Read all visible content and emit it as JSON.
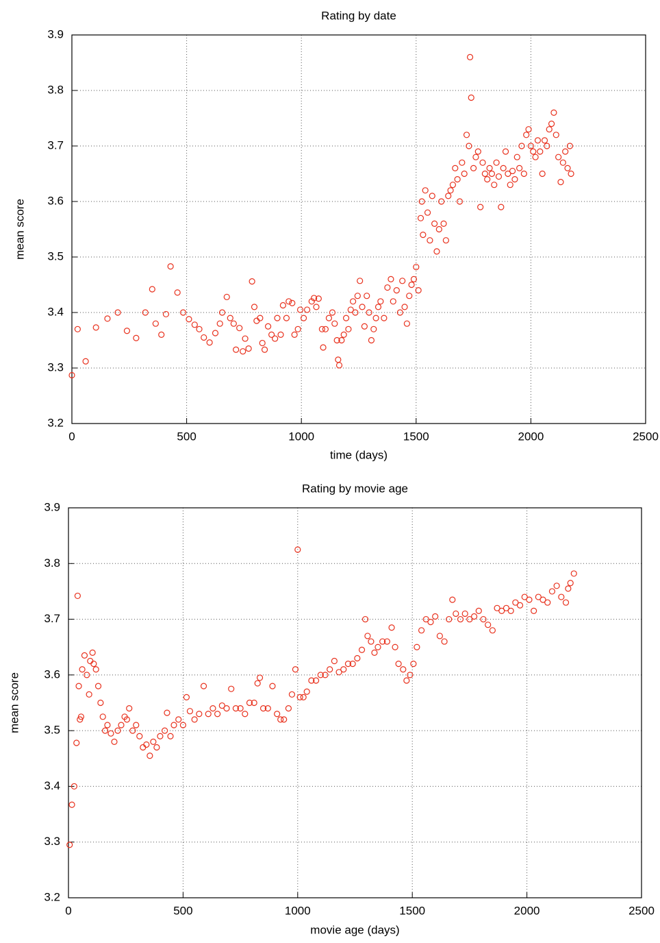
{
  "chart_data": [
    {
      "type": "scatter",
      "title": "Rating by date",
      "xlabel": "time (days)",
      "ylabel": "mean score",
      "color": "#e8301c",
      "grid": true,
      "xlim": [
        0,
        2500
      ],
      "xticks": [
        0,
        500,
        1000,
        1500,
        2000,
        2500
      ],
      "ylim": [
        3.2,
        3.9
      ],
      "yticks": [
        3.2,
        3.3,
        3.4,
        3.5,
        3.6,
        3.7,
        3.8,
        3.9
      ],
      "x": [
        0,
        25,
        60,
        105,
        155,
        200,
        240,
        280,
        320,
        350,
        365,
        390,
        410,
        430,
        460,
        485,
        510,
        535,
        555,
        575,
        600,
        625,
        645,
        655,
        675,
        690,
        705,
        715,
        730,
        745,
        755,
        770,
        785,
        795,
        805,
        820,
        830,
        840,
        855,
        870,
        885,
        895,
        910,
        920,
        935,
        945,
        960,
        970,
        985,
        995,
        1010,
        1025,
        1045,
        1055,
        1065,
        1075,
        1090,
        1095,
        1105,
        1120,
        1135,
        1145,
        1155,
        1160,
        1165,
        1175,
        1185,
        1195,
        1205,
        1215,
        1225,
        1235,
        1245,
        1255,
        1265,
        1275,
        1285,
        1295,
        1305,
        1315,
        1325,
        1335,
        1345,
        1360,
        1375,
        1390,
        1400,
        1415,
        1430,
        1440,
        1450,
        1460,
        1470,
        1480,
        1490,
        1500,
        1510,
        1520,
        1525,
        1530,
        1540,
        1550,
        1560,
        1570,
        1580,
        1590,
        1600,
        1610,
        1620,
        1630,
        1640,
        1650,
        1660,
        1670,
        1680,
        1690,
        1700,
        1710,
        1720,
        1730,
        1735,
        1740,
        1750,
        1760,
        1770,
        1780,
        1790,
        1800,
        1810,
        1820,
        1830,
        1840,
        1850,
        1860,
        1870,
        1880,
        1890,
        1900,
        1910,
        1920,
        1930,
        1940,
        1950,
        1960,
        1970,
        1980,
        1990,
        2000,
        2010,
        2020,
        2030,
        2040,
        2050,
        2060,
        2070,
        2080,
        2090,
        2100,
        2110,
        2120,
        2130,
        2140,
        2150,
        2160,
        2170,
        2175
      ],
      "values": [
        3.287,
        3.37,
        3.312,
        3.373,
        3.389,
        3.4,
        3.367,
        3.354,
        3.4,
        3.442,
        3.38,
        3.36,
        3.397,
        3.483,
        3.436,
        3.4,
        3.388,
        3.378,
        3.37,
        3.355,
        3.346,
        3.363,
        3.38,
        3.4,
        3.428,
        3.39,
        3.38,
        3.333,
        3.372,
        3.33,
        3.353,
        3.335,
        3.456,
        3.41,
        3.385,
        3.39,
        3.345,
        3.333,
        3.375,
        3.36,
        3.353,
        3.39,
        3.36,
        3.413,
        3.39,
        3.42,
        3.417,
        3.36,
        3.37,
        3.405,
        3.39,
        3.405,
        3.42,
        3.426,
        3.41,
        3.425,
        3.37,
        3.337,
        3.37,
        3.39,
        3.4,
        3.38,
        3.35,
        3.315,
        3.305,
        3.35,
        3.36,
        3.39,
        3.37,
        3.405,
        3.42,
        3.4,
        3.43,
        3.457,
        3.41,
        3.375,
        3.43,
        3.4,
        3.35,
        3.37,
        3.39,
        3.41,
        3.42,
        3.39,
        3.445,
        3.46,
        3.42,
        3.44,
        3.4,
        3.457,
        3.41,
        3.38,
        3.43,
        3.45,
        3.46,
        3.482,
        3.44,
        3.57,
        3.6,
        3.54,
        3.62,
        3.58,
        3.53,
        3.61,
        3.56,
        3.51,
        3.55,
        3.6,
        3.56,
        3.53,
        3.61,
        3.62,
        3.63,
        3.66,
        3.64,
        3.6,
        3.67,
        3.65,
        3.72,
        3.7,
        3.86,
        3.787,
        3.66,
        3.68,
        3.69,
        3.59,
        3.67,
        3.65,
        3.64,
        3.66,
        3.65,
        3.63,
        3.67,
        3.645,
        3.59,
        3.66,
        3.69,
        3.65,
        3.63,
        3.655,
        3.64,
        3.68,
        3.66,
        3.7,
        3.65,
        3.72,
        3.73,
        3.7,
        3.69,
        3.68,
        3.71,
        3.69,
        3.65,
        3.71,
        3.7,
        3.73,
        3.74,
        3.76,
        3.72,
        3.68,
        3.635,
        3.67,
        3.69,
        3.66,
        3.7,
        3.65
      ]
    },
    {
      "type": "scatter",
      "title": "Rating by movie age",
      "xlabel": "movie age (days)",
      "ylabel": "mean score",
      "color": "#e8301c",
      "grid": true,
      "xlim": [
        0,
        2500
      ],
      "xticks": [
        0,
        500,
        1000,
        1500,
        2000,
        2500
      ],
      "ylim": [
        3.2,
        3.9
      ],
      "yticks": [
        3.2,
        3.3,
        3.4,
        3.5,
        3.6,
        3.7,
        3.8,
        3.9
      ],
      "x": [
        5,
        15,
        25,
        35,
        40,
        45,
        50,
        55,
        60,
        70,
        80,
        90,
        95,
        105,
        110,
        120,
        130,
        140,
        150,
        160,
        170,
        185,
        200,
        215,
        230,
        245,
        255,
        265,
        280,
        295,
        310,
        325,
        340,
        355,
        370,
        385,
        400,
        420,
        430,
        445,
        460,
        480,
        500,
        515,
        530,
        550,
        570,
        590,
        610,
        630,
        650,
        670,
        690,
        710,
        730,
        750,
        770,
        790,
        810,
        825,
        835,
        850,
        870,
        890,
        910,
        925,
        940,
        960,
        975,
        990,
        1000,
        1010,
        1025,
        1040,
        1060,
        1080,
        1100,
        1120,
        1140,
        1160,
        1180,
        1200,
        1220,
        1240,
        1260,
        1280,
        1295,
        1305,
        1320,
        1335,
        1350,
        1370,
        1390,
        1410,
        1425,
        1440,
        1460,
        1475,
        1490,
        1505,
        1520,
        1540,
        1560,
        1580,
        1600,
        1620,
        1640,
        1660,
        1675,
        1690,
        1710,
        1730,
        1750,
        1770,
        1790,
        1810,
        1830,
        1850,
        1870,
        1890,
        1910,
        1930,
        1950,
        1970,
        1990,
        2010,
        2030,
        2050,
        2070,
        2090,
        2110,
        2130,
        2150,
        2170,
        2180,
        2190,
        2205
      ],
      "values": [
        3.295,
        3.367,
        3.4,
        3.478,
        3.742,
        3.58,
        3.52,
        3.525,
        3.61,
        3.635,
        3.6,
        3.565,
        3.625,
        3.64,
        3.62,
        3.61,
        3.58,
        3.55,
        3.525,
        3.5,
        3.51,
        3.495,
        3.48,
        3.5,
        3.51,
        3.525,
        3.52,
        3.54,
        3.5,
        3.51,
        3.49,
        3.47,
        3.475,
        3.455,
        3.48,
        3.47,
        3.49,
        3.5,
        3.532,
        3.49,
        3.51,
        3.52,
        3.51,
        3.56,
        3.535,
        3.52,
        3.53,
        3.58,
        3.53,
        3.54,
        3.53,
        3.545,
        3.54,
        3.575,
        3.54,
        3.54,
        3.53,
        3.55,
        3.55,
        3.585,
        3.595,
        3.54,
        3.54,
        3.58,
        3.53,
        3.52,
        3.52,
        3.54,
        3.565,
        3.61,
        3.825,
        3.56,
        3.56,
        3.57,
        3.59,
        3.59,
        3.6,
        3.6,
        3.61,
        3.625,
        3.605,
        3.61,
        3.62,
        3.62,
        3.63,
        3.645,
        3.7,
        3.67,
        3.66,
        3.64,
        3.65,
        3.66,
        3.66,
        3.685,
        3.65,
        3.62,
        3.61,
        3.59,
        3.6,
        3.62,
        3.65,
        3.68,
        3.7,
        3.695,
        3.705,
        3.67,
        3.66,
        3.7,
        3.735,
        3.71,
        3.7,
        3.71,
        3.7,
        3.705,
        3.715,
        3.7,
        3.69,
        3.68,
        3.72,
        3.715,
        3.72,
        3.715,
        3.73,
        3.725,
        3.74,
        3.735,
        3.715,
        3.74,
        3.735,
        3.73,
        3.75,
        3.76,
        3.74,
        3.73,
        3.755,
        3.765,
        3.782
      ]
    }
  ]
}
